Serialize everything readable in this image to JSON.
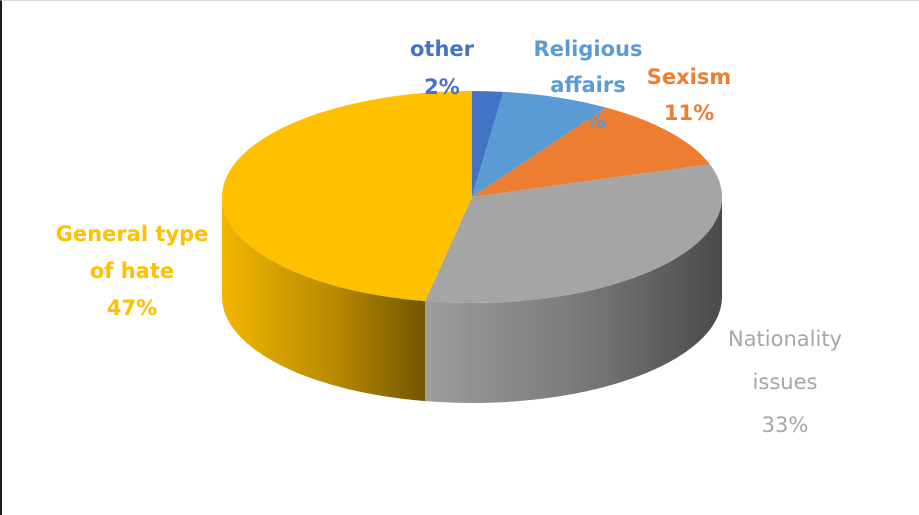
{
  "chart_data": {
    "type": "pie",
    "title": "",
    "slices": [
      {
        "label_lines": [
          "other"
        ],
        "value": 2,
        "value_label": "2%",
        "color": "#4472c4",
        "label_color": "#4472c4"
      },
      {
        "label_lines": [
          "Religious",
          "affairs"
        ],
        "value": 7,
        "value_label": "7%",
        "color": "#5b9bd5",
        "label_color": "#5b9bd5"
      },
      {
        "label_lines": [
          "Sexism"
        ],
        "value": 11,
        "value_label": "11%",
        "color": "#ed7d31",
        "label_color": "#ed7d31"
      },
      {
        "label_lines": [
          "Nationality",
          "issues"
        ],
        "value": 33,
        "value_label": "33%",
        "color": "#a5a5a5",
        "label_color": "#a6a6a6"
      },
      {
        "label_lines": [
          "General type",
          "of hate"
        ],
        "value": 47,
        "value_label": "47%",
        "color": "#ffc000",
        "label_color": "#ffc000"
      }
    ],
    "legend": "none",
    "style": "3d-pie"
  }
}
